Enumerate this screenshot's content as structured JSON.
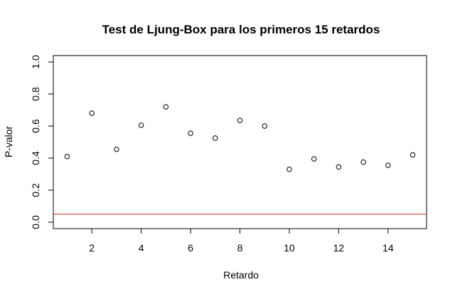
{
  "chart_data": {
    "type": "scatter",
    "title": "Test de Ljung-Box para los primeros 15 retardos",
    "xlabel": "Retardo",
    "ylabel": "P-valor",
    "xlim": [
      0.44,
      15.56
    ],
    "ylim": [
      -0.04,
      1.04
    ],
    "x_ticks": [
      2,
      4,
      6,
      8,
      10,
      12,
      14
    ],
    "y_ticks": [
      0.0,
      0.2,
      0.4,
      0.6,
      0.8,
      1.0
    ],
    "x_tick_labels": [
      "2",
      "4",
      "6",
      "8",
      "10",
      "12",
      "14"
    ],
    "y_tick_labels": [
      "0.0",
      "0.2",
      "0.4",
      "0.6",
      "0.8",
      "1.0"
    ],
    "x": [
      1,
      2,
      3,
      4,
      5,
      6,
      7,
      8,
      9,
      10,
      11,
      12,
      13,
      14,
      15
    ],
    "y": [
      0.41,
      0.68,
      0.455,
      0.605,
      0.72,
      0.555,
      0.525,
      0.635,
      0.6,
      0.33,
      0.395,
      0.345,
      0.375,
      0.355,
      0.42
    ],
    "reference_line": {
      "y": 0.05,
      "color": "#d62728"
    },
    "marker": "open-circle",
    "grid": false
  }
}
